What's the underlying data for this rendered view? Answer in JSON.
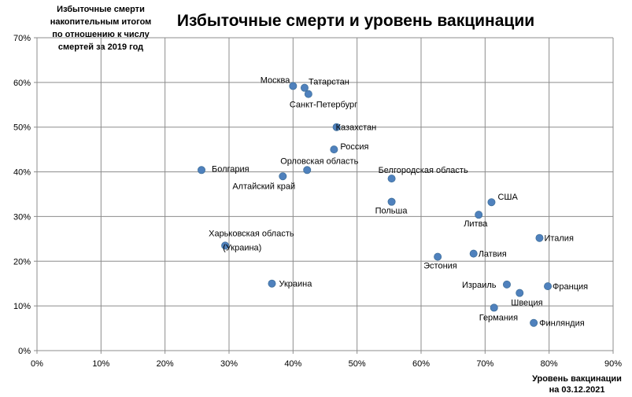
{
  "chart_data": {
    "type": "scatter",
    "title": "Избыточные смерти и уровень вакцинации",
    "ylabel_lines": [
      "Избыточные смерти",
      "накопительным итогом",
      "по отношению к числу",
      "смертей за 2019 год"
    ],
    "xlabel_lines": [
      "Уровень вакцинации",
      "на 03.12.2021"
    ],
    "xlim": [
      0,
      90
    ],
    "ylim": [
      0,
      70
    ],
    "x_ticks": [
      "0%",
      "10%",
      "20%",
      "30%",
      "40%",
      "50%",
      "60%",
      "70%",
      "80%",
      "90%"
    ],
    "y_ticks": [
      "0%",
      "10%",
      "20%",
      "30%",
      "40%",
      "50%",
      "60%",
      "70%"
    ],
    "grid": true,
    "legend": "none",
    "points": [
      {
        "label": "Москва",
        "x": 40.0,
        "y": 59.2
      },
      {
        "label": "Татарстан",
        "x": 41.8,
        "y": 58.8
      },
      {
        "label": "Санкт-Петербург",
        "x": 42.4,
        "y": 57.4
      },
      {
        "label": "Казахстан",
        "x": 46.8,
        "y": 50.0
      },
      {
        "label": "Россия",
        "x": 46.4,
        "y": 45.0
      },
      {
        "label": "Болгария",
        "x": 25.7,
        "y": 40.4
      },
      {
        "label": "Орловская область",
        "x": 42.2,
        "y": 40.4
      },
      {
        "label": "Алтайский край",
        "x": 38.4,
        "y": 39.0
      },
      {
        "label": "Белгородская область",
        "x": 55.4,
        "y": 38.5
      },
      {
        "label": "Польша",
        "x": 55.4,
        "y": 33.3
      },
      {
        "label": "США",
        "x": 71.0,
        "y": 33.2
      },
      {
        "label": "Литва",
        "x": 69.0,
        "y": 30.4
      },
      {
        "label": "Италия",
        "x": 78.5,
        "y": 25.2
      },
      {
        "label": "Харьковская область (Украина)",
        "label_lines": [
          "Харьковская область",
          "(Украина)"
        ],
        "x": 29.4,
        "y": 23.5
      },
      {
        "label": "Латвия",
        "x": 68.2,
        "y": 21.7
      },
      {
        "label": "Эстония",
        "x": 62.6,
        "y": 21.0
      },
      {
        "label": "Украина",
        "x": 36.7,
        "y": 15.0
      },
      {
        "label": "Израиль",
        "x": 73.4,
        "y": 14.8
      },
      {
        "label": "Франция",
        "x": 79.8,
        "y": 14.4
      },
      {
        "label": "Швеция",
        "x": 75.4,
        "y": 12.9
      },
      {
        "label": "Германия",
        "x": 71.4,
        "y": 9.6
      },
      {
        "label": "Финляндия",
        "x": 77.6,
        "y": 6.2
      }
    ]
  },
  "colors": {
    "marker": "#4f81bd",
    "marker_edge": "#41719c",
    "grid": "#8c8c8c"
  }
}
